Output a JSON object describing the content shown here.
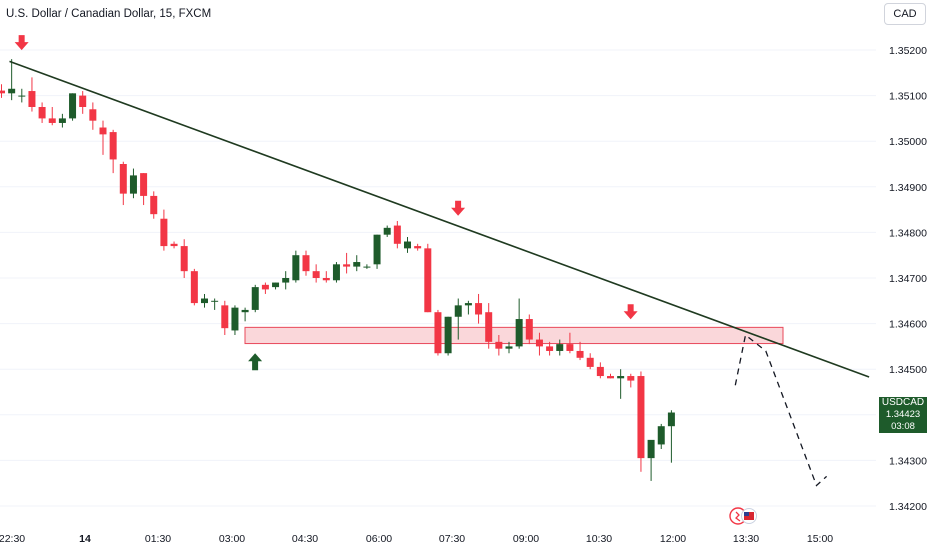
{
  "header": {
    "title": "U.S. Dollar / Canadian Dollar, 15, FXCM",
    "currency_button": "CAD"
  },
  "price_label": {
    "symbol": "USDCAD",
    "price": "1.34423",
    "countdown": "03:08"
  },
  "colors": {
    "up": "#1e5b2b",
    "down": "#f23645",
    "trendline": "#1f3a20",
    "zone_fill": "#f6b6bb",
    "zone_stroke": "#e8485a",
    "grid": "#f0f3fa"
  },
  "icons": [
    "arrow-down-icon",
    "arrow-up-icon",
    "events-flag-icon"
  ],
  "chart_data": {
    "type": "candlestick",
    "symbol": "USDCAD",
    "timeframe": "15",
    "y_ticks": [
      "1.35200",
      "1.35100",
      "1.35000",
      "1.34900",
      "1.34800",
      "1.34700",
      "1.34600",
      "1.34500",
      "1.34400",
      "1.34300",
      "1.34200"
    ],
    "x_ticks": [
      "22:30",
      "14",
      "01:30",
      "03:00",
      "04:30",
      "06:00",
      "07:30",
      "09:00",
      "10:30",
      "12:00",
      "13:30",
      "15:00"
    ],
    "ylim": [
      1.3418,
      1.3523
    ],
    "candles": [
      [
        1.35111,
        1.35125,
        1.35095,
        1.35105
      ],
      [
        1.35105,
        1.3518,
        1.3509,
        1.35115
      ],
      [
        1.351,
        1.35115,
        1.35085,
        1.351
      ],
      [
        1.3511,
        1.3514,
        1.35065,
        1.35075
      ],
      [
        1.35075,
        1.35085,
        1.3504,
        1.3505
      ],
      [
        1.3505,
        1.35075,
        1.35035,
        1.3504
      ],
      [
        1.3504,
        1.3506,
        1.3503,
        1.3505
      ],
      [
        1.3505,
        1.35105,
        1.35045,
        1.35105
      ],
      [
        1.351,
        1.3511,
        1.3506,
        1.35075
      ],
      [
        1.3507,
        1.35085,
        1.35025,
        1.35045
      ],
      [
        1.3503,
        1.35045,
        1.3497,
        1.35015
      ],
      [
        1.3502,
        1.35025,
        1.3493,
        1.3496
      ],
      [
        1.3495,
        1.34955,
        1.3486,
        1.34885
      ],
      [
        1.34885,
        1.3494,
        1.34875,
        1.34925
      ],
      [
        1.3493,
        1.3493,
        1.3486,
        1.3488
      ],
      [
        1.3488,
        1.3489,
        1.3483,
        1.3484
      ],
      [
        1.3483,
        1.3485,
        1.3476,
        1.3477
      ],
      [
        1.34775,
        1.3478,
        1.34765,
        1.3477
      ],
      [
        1.3477,
        1.34785,
        1.347,
        1.34715
      ],
      [
        1.34715,
        1.3472,
        1.3464,
        1.34645
      ],
      [
        1.34645,
        1.34665,
        1.34635,
        1.34655
      ],
      [
        1.3465,
        1.34655,
        1.3463,
        1.3465
      ],
      [
        1.3464,
        1.3465,
        1.34575,
        1.3459
      ],
      [
        1.34585,
        1.3464,
        1.34575,
        1.34635
      ],
      [
        1.34625,
        1.34635,
        1.34605,
        1.3463
      ],
      [
        1.3463,
        1.34685,
        1.34625,
        1.3468
      ],
      [
        1.34685,
        1.3469,
        1.34665,
        1.34675
      ],
      [
        1.3468,
        1.3469,
        1.34675,
        1.3469
      ],
      [
        1.3469,
        1.34715,
        1.34675,
        1.347
      ],
      [
        1.34695,
        1.3476,
        1.3469,
        1.3475
      ],
      [
        1.3475,
        1.3476,
        1.34705,
        1.34715
      ],
      [
        1.34715,
        1.3473,
        1.3469,
        1.347
      ],
      [
        1.347,
        1.34715,
        1.3469,
        1.34695
      ],
      [
        1.34695,
        1.34735,
        1.3469,
        1.3473
      ],
      [
        1.3473,
        1.34755,
        1.3471,
        1.34725
      ],
      [
        1.34725,
        1.3475,
        1.34715,
        1.34735
      ],
      [
        1.34725,
        1.3473,
        1.3472,
        1.34725
      ],
      [
        1.3473,
        1.34795,
        1.3472,
        1.34795
      ],
      [
        1.34795,
        1.34815,
        1.3479,
        1.3481
      ],
      [
        1.34815,
        1.34825,
        1.34765,
        1.34775
      ],
      [
        1.34765,
        1.3479,
        1.34755,
        1.3478
      ],
      [
        1.3477,
        1.34775,
        1.3476,
        1.34765
      ],
      [
        1.34765,
        1.34775,
        1.34625,
        1.34625
      ],
      [
        1.34625,
        1.3463,
        1.3453,
        1.34535
      ],
      [
        1.34535,
        1.34615,
        1.3453,
        1.34615
      ],
      [
        1.34615,
        1.34655,
        1.34565,
        1.3464
      ],
      [
        1.3464,
        1.3465,
        1.3462,
        1.34645
      ],
      [
        1.34645,
        1.34665,
        1.346,
        1.3462
      ],
      [
        1.34625,
        1.34645,
        1.34545,
        1.3456
      ],
      [
        1.3456,
        1.34575,
        1.3453,
        1.34545
      ],
      [
        1.34545,
        1.3456,
        1.34535,
        1.3455
      ],
      [
        1.3455,
        1.34655,
        1.34545,
        1.3461
      ],
      [
        1.3461,
        1.3462,
        1.34555,
        1.34565
      ],
      [
        1.34565,
        1.3458,
        1.3453,
        1.3455
      ],
      [
        1.3455,
        1.3456,
        1.3453,
        1.3454
      ],
      [
        1.3454,
        1.34565,
        1.3453,
        1.34555
      ],
      [
        1.34555,
        1.3458,
        1.34535,
        1.3454
      ],
      [
        1.3454,
        1.3456,
        1.3452,
        1.34525
      ],
      [
        1.34525,
        1.34535,
        1.345,
        1.34505
      ],
      [
        1.34505,
        1.34515,
        1.3448,
        1.34485
      ],
      [
        1.34485,
        1.3449,
        1.3448,
        1.3448
      ],
      [
        1.3448,
        1.345,
        1.34435,
        1.34485
      ],
      [
        1.34485,
        1.3449,
        1.3446,
        1.34475
      ],
      [
        1.34485,
        1.34495,
        1.34275,
        1.34305
      ],
      [
        1.34305,
        1.3434,
        1.34255,
        1.34345
      ],
      [
        1.34335,
        1.3438,
        1.34325,
        1.34375
      ],
      [
        1.34375,
        1.3441,
        1.34295,
        1.34405
      ]
    ],
    "trendline": [
      [
        0,
        1.35175
      ],
      [
        84,
        1.34483
      ]
    ],
    "support_zone": [
      1.34565,
      1.34583
    ],
    "signal_arrows": [
      {
        "index": 1,
        "direction": "down",
        "price": 1.35215
      },
      {
        "index": 24,
        "direction": "up",
        "price": 1.34535
      },
      {
        "index": 44,
        "direction": "down",
        "price": 1.34852
      },
      {
        "index": 61,
        "direction": "down",
        "price": 1.34625
      }
    ],
    "projection": [
      [
        72,
        1.34465
      ],
      [
        73,
        1.34575
      ],
      [
        75,
        1.3454
      ],
      [
        80,
        1.34245
      ],
      [
        81,
        1.34265
      ]
    ]
  }
}
